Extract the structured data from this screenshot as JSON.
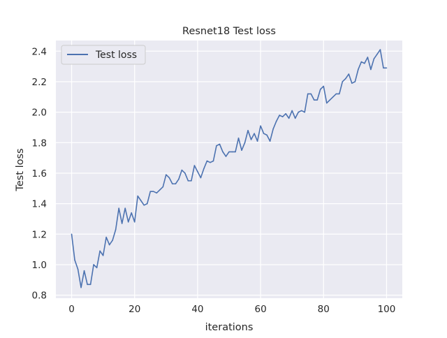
{
  "chart_data": {
    "type": "line",
    "title": "Resnet18 Test loss",
    "xlabel": "iterations",
    "ylabel": "Test loss",
    "xlim": [
      -5,
      105
    ],
    "ylim": [
      0.78,
      2.47
    ],
    "xticks": [
      0,
      20,
      40,
      60,
      80,
      100
    ],
    "yticks": [
      0.8,
      1.0,
      1.2,
      1.4,
      1.6,
      1.8,
      2.0,
      2.2,
      2.4
    ],
    "grid": true,
    "legend": {
      "position": "top-left",
      "entries": [
        "Test loss"
      ]
    },
    "colors": {
      "background": "#eaeaf2",
      "grid": "#ffffff",
      "line": "#4c72b0"
    },
    "series": [
      {
        "name": "Test loss",
        "x": [
          0,
          1,
          2,
          3,
          4,
          5,
          6,
          7,
          8,
          9,
          10,
          11,
          12,
          13,
          14,
          15,
          16,
          17,
          18,
          19,
          20,
          21,
          22,
          23,
          24,
          25,
          26,
          27,
          28,
          29,
          30,
          31,
          32,
          33,
          34,
          35,
          36,
          37,
          38,
          39,
          40,
          41,
          42,
          43,
          44,
          45,
          46,
          47,
          48,
          49,
          50,
          51,
          52,
          53,
          54,
          55,
          56,
          57,
          58,
          59,
          60,
          61,
          62,
          63,
          64,
          65,
          66,
          67,
          68,
          69,
          70,
          71,
          72,
          73,
          74,
          75,
          76,
          77,
          78,
          79,
          80,
          81,
          82,
          83,
          84,
          85,
          86,
          87,
          88,
          89,
          90,
          91,
          92,
          93,
          94,
          95,
          96,
          97,
          98,
          99,
          100
        ],
        "values": [
          1.2,
          1.03,
          0.97,
          0.85,
          0.96,
          0.87,
          0.87,
          1.0,
          0.98,
          1.09,
          1.06,
          1.18,
          1.13,
          1.16,
          1.23,
          1.37,
          1.27,
          1.37,
          1.28,
          1.34,
          1.28,
          1.45,
          1.42,
          1.39,
          1.4,
          1.48,
          1.48,
          1.47,
          1.49,
          1.51,
          1.59,
          1.57,
          1.53,
          1.53,
          1.56,
          1.62,
          1.6,
          1.55,
          1.55,
          1.65,
          1.61,
          1.57,
          1.63,
          1.68,
          1.67,
          1.68,
          1.78,
          1.79,
          1.74,
          1.71,
          1.74,
          1.74,
          1.74,
          1.83,
          1.75,
          1.8,
          1.88,
          1.82,
          1.86,
          1.81,
          1.91,
          1.86,
          1.85,
          1.81,
          1.89,
          1.94,
          1.98,
          1.97,
          1.99,
          1.96,
          2.01,
          1.96,
          2.0,
          2.01,
          2.0,
          2.12,
          2.12,
          2.08,
          2.08,
          2.15,
          2.17,
          2.06,
          2.08,
          2.1,
          2.12,
          2.12,
          2.2,
          2.22,
          2.25,
          2.19,
          2.2,
          2.28,
          2.33,
          2.32,
          2.36,
          2.28,
          2.35,
          2.38,
          2.41,
          2.29,
          2.29
        ]
      }
    ]
  }
}
